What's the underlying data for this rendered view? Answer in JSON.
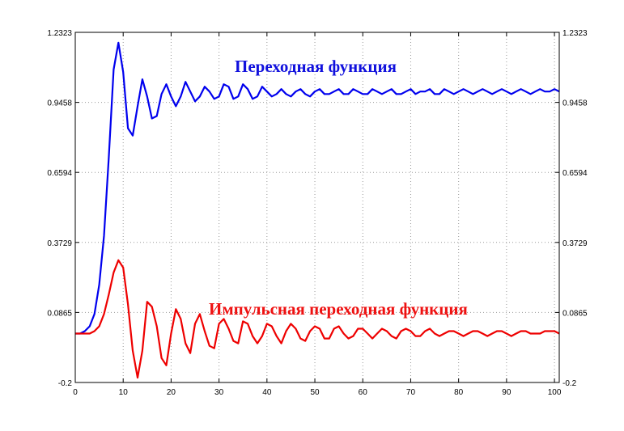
{
  "chart_data": {
    "type": "line",
    "title": "",
    "xlabel": "",
    "ylabel": "",
    "xlim": [
      0,
      101
    ],
    "ylim": [
      -0.2,
      1.2323
    ],
    "x_ticks": [
      "0",
      "10",
      "20",
      "30",
      "40",
      "50",
      "60",
      "70",
      "80",
      "90",
      "100"
    ],
    "y_ticks": [
      "-0.2",
      "0.0865",
      "0.3729",
      "0.6594",
      "0.9458",
      "1.2323"
    ],
    "grid": true,
    "right_axis_ticks": true,
    "annotations": [
      {
        "text": "Переходная функция",
        "series": "step",
        "color": "#1010dd"
      },
      {
        "text": "Импульсная переходная функция",
        "series": "impulse",
        "color": "#ee1111"
      }
    ],
    "series": [
      {
        "id": "step",
        "color": "#0000ee",
        "x": [
          0,
          1,
          2,
          3,
          4,
          5,
          6,
          7,
          8,
          9,
          10,
          11,
          12,
          13,
          14,
          15,
          16,
          17,
          18,
          19,
          20,
          21,
          22,
          23,
          24,
          25,
          26,
          27,
          28,
          29,
          30,
          31,
          32,
          33,
          34,
          35,
          36,
          37,
          38,
          39,
          40,
          41,
          42,
          43,
          44,
          45,
          46,
          47,
          48,
          49,
          50,
          51,
          52,
          53,
          54,
          55,
          56,
          57,
          58,
          59,
          60,
          61,
          62,
          63,
          64,
          65,
          66,
          67,
          68,
          69,
          70,
          71,
          72,
          73,
          74,
          75,
          76,
          77,
          78,
          79,
          80,
          81,
          82,
          83,
          84,
          85,
          86,
          87,
          88,
          89,
          90,
          91,
          92,
          93,
          94,
          95,
          96,
          97,
          98,
          99,
          100,
          101
        ],
        "y": [
          0,
          0,
          0.01,
          0.03,
          0.08,
          0.2,
          0.4,
          0.72,
          1.08,
          1.19,
          1.07,
          0.84,
          0.81,
          0.93,
          1.04,
          0.97,
          0.88,
          0.89,
          0.98,
          1.02,
          0.97,
          0.93,
          0.97,
          1.03,
          0.99,
          0.95,
          0.97,
          1.01,
          0.99,
          0.96,
          0.97,
          1.02,
          1.01,
          0.96,
          0.97,
          1.02,
          1.0,
          0.96,
          0.97,
          1.01,
          0.99,
          0.97,
          0.98,
          1.0,
          0.98,
          0.97,
          0.99,
          1.0,
          0.98,
          0.97,
          0.99,
          1.0,
          0.98,
          0.98,
          0.99,
          1.0,
          0.98,
          0.98,
          1.0,
          0.99,
          0.98,
          0.98,
          1.0,
          0.99,
          0.98,
          0.99,
          1.0,
          0.98,
          0.98,
          0.99,
          1.0,
          0.98,
          0.99,
          0.99,
          1.0,
          0.98,
          0.98,
          1.0,
          0.99,
          0.98,
          0.99,
          1.0,
          0.99,
          0.98,
          0.99,
          1.0,
          0.99,
          0.98,
          0.99,
          1.0,
          0.99,
          0.98,
          0.99,
          1.0,
          0.99,
          0.98,
          0.99,
          1.0,
          0.99,
          0.99,
          1.0,
          0.99
        ]
      },
      {
        "id": "impulse",
        "color": "#ee0000",
        "x": [
          0,
          1,
          2,
          3,
          4,
          5,
          6,
          7,
          8,
          9,
          10,
          11,
          12,
          13,
          14,
          15,
          16,
          17,
          18,
          19,
          20,
          21,
          22,
          23,
          24,
          25,
          26,
          27,
          28,
          29,
          30,
          31,
          32,
          33,
          34,
          35,
          36,
          37,
          38,
          39,
          40,
          41,
          42,
          43,
          44,
          45,
          46,
          47,
          48,
          49,
          50,
          51,
          52,
          53,
          54,
          55,
          56,
          57,
          58,
          59,
          60,
          61,
          62,
          63,
          64,
          65,
          66,
          67,
          68,
          69,
          70,
          71,
          72,
          73,
          74,
          75,
          76,
          77,
          78,
          79,
          80,
          81,
          82,
          83,
          84,
          85,
          86,
          87,
          88,
          89,
          90,
          91,
          92,
          93,
          94,
          95,
          96,
          97,
          98,
          99,
          100,
          101
        ],
        "y": [
          0,
          0,
          0,
          0,
          0.01,
          0.03,
          0.08,
          0.16,
          0.25,
          0.3,
          0.27,
          0.12,
          -0.07,
          -0.18,
          -0.07,
          0.13,
          0.11,
          0.03,
          -0.1,
          -0.13,
          0.0,
          0.1,
          0.06,
          -0.04,
          -0.08,
          0.04,
          0.08,
          0.01,
          -0.05,
          -0.06,
          0.04,
          0.06,
          0.02,
          -0.03,
          -0.04,
          0.05,
          0.04,
          -0.01,
          -0.04,
          -0.01,
          0.04,
          0.03,
          -0.01,
          -0.04,
          0.01,
          0.04,
          0.02,
          -0.02,
          -0.03,
          0.01,
          0.03,
          0.02,
          -0.02,
          -0.02,
          0.02,
          0.03,
          0.0,
          -0.02,
          -0.01,
          0.02,
          0.02,
          0.0,
          -0.02,
          0.0,
          0.02,
          0.01,
          -0.01,
          -0.02,
          0.01,
          0.02,
          0.01,
          -0.01,
          -0.01,
          0.01,
          0.02,
          0.0,
          -0.01,
          0.0,
          0.01,
          0.01,
          0.0,
          -0.01,
          0.0,
          0.01,
          0.01,
          0.0,
          -0.01,
          0.0,
          0.01,
          0.01,
          0.0,
          -0.01,
          0.0,
          0.01,
          0.01,
          0.0,
          0.0,
          0.0,
          0.01,
          0.01,
          0.01,
          0.0
        ]
      }
    ]
  }
}
